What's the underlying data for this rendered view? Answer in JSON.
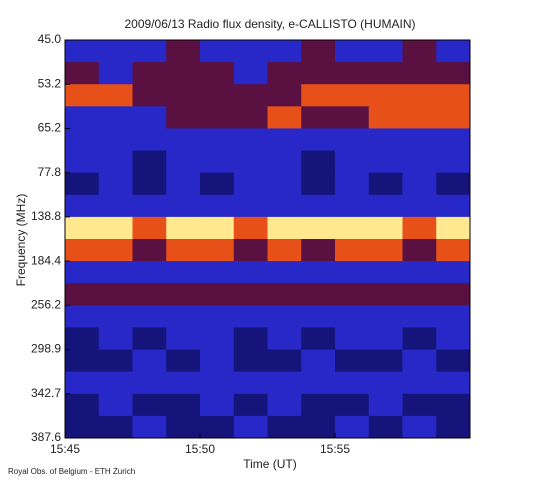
{
  "chart_data": {
    "type": "spectrogram",
    "title": "2009/06/13  Radio flux density, e-CALLISTO (HUMAIN)",
    "xlabel": "Time (UT)",
    "ylabel": "Frequency (MHz)",
    "footer": "Royal Obs. of Belgium - ETH Zurich",
    "xticks": [
      "15:45",
      "15:50",
      "15:55"
    ],
    "yticks": [
      {
        "value": 45,
        "label": "45.0"
      },
      53.2,
      65.2,
      77.8,
      138.8,
      184.4,
      256.2,
      298.9,
      342.7,
      387.6
    ],
    "colorscale": [
      "#14147a",
      "#2828c8",
      "#5a1040",
      "#e8501a",
      "#ffe890"
    ],
    "values": [
      [
        1,
        1,
        1,
        2,
        1,
        1,
        1,
        2,
        1,
        1,
        2,
        1
      ],
      [
        2,
        1,
        2,
        2,
        2,
        1,
        2,
        2,
        2,
        2,
        2,
        2
      ],
      [
        3,
        3,
        2,
        2,
        2,
        2,
        2,
        3,
        3,
        3,
        3,
        3
      ],
      [
        1,
        1,
        1,
        2,
        2,
        2,
        3,
        2,
        2,
        3,
        3,
        3
      ],
      [
        1,
        1,
        1,
        1,
        1,
        1,
        1,
        1,
        1,
        1,
        1,
        1
      ],
      [
        1,
        1,
        0,
        1,
        1,
        1,
        1,
        0,
        1,
        1,
        1,
        1
      ],
      [
        0,
        1,
        0,
        1,
        0,
        1,
        1,
        0,
        1,
        0,
        1,
        0
      ],
      [
        1,
        1,
        1,
        1,
        1,
        1,
        1,
        1,
        1,
        1,
        1,
        1
      ],
      [
        4,
        4,
        3,
        4,
        4,
        3,
        4,
        4,
        4,
        4,
        3,
        4
      ],
      [
        3,
        3,
        2,
        3,
        3,
        2,
        3,
        2,
        3,
        3,
        2,
        3
      ],
      [
        1,
        1,
        1,
        1,
        1,
        1,
        1,
        1,
        1,
        1,
        1,
        1
      ],
      [
        2,
        2,
        2,
        2,
        2,
        2,
        2,
        2,
        2,
        2,
        2,
        2
      ],
      [
        1,
        1,
        1,
        1,
        1,
        1,
        1,
        1,
        1,
        1,
        1,
        1
      ],
      [
        0,
        1,
        0,
        1,
        1,
        0,
        1,
        0,
        1,
        1,
        0,
        1
      ],
      [
        0,
        0,
        1,
        0,
        1,
        0,
        0,
        1,
        0,
        0,
        1,
        0
      ],
      [
        1,
        1,
        1,
        1,
        1,
        1,
        1,
        1,
        1,
        1,
        1,
        1
      ],
      [
        0,
        1,
        0,
        0,
        1,
        0,
        1,
        0,
        0,
        1,
        0,
        0
      ],
      [
        0,
        0,
        1,
        0,
        0,
        1,
        0,
        0,
        1,
        0,
        1,
        0
      ]
    ]
  }
}
